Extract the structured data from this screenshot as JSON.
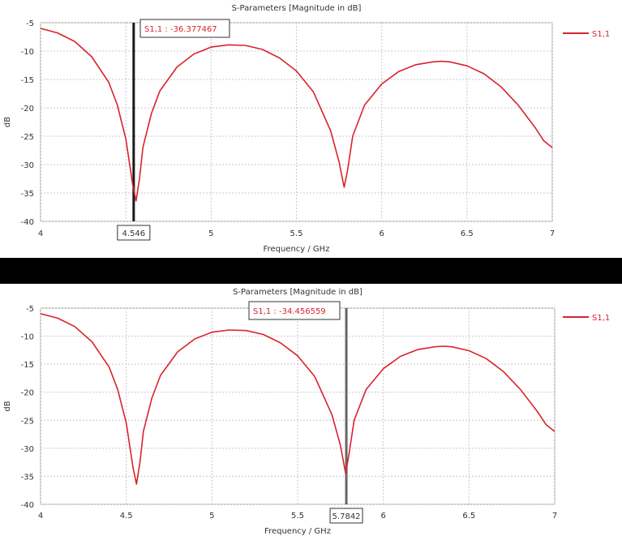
{
  "chart_data": [
    {
      "type": "line",
      "title": "S-Parameters [Magnitude in dB]",
      "xlabel": "Frequency / GHz",
      "ylabel": "dB",
      "xlim": [
        4,
        7
      ],
      "ylim": [
        -40,
        -5
      ],
      "xticks": [
        "4",
        "4.5",
        "5",
        "5.5",
        "6",
        "6.5",
        "7"
      ],
      "yticks": [
        "-5",
        "-10",
        "-15",
        "-20",
        "-25",
        "-30",
        "-35",
        "-40"
      ],
      "grid": true,
      "legend": "top-right",
      "series": [
        {
          "name": "S1,1",
          "color": "#d9232d",
          "x": [
            4.0,
            4.1,
            4.2,
            4.3,
            4.4,
            4.45,
            4.5,
            4.52,
            4.54,
            4.56,
            4.58,
            4.6,
            4.65,
            4.7,
            4.8,
            4.9,
            5.0,
            5.1,
            5.2,
            5.3,
            5.4,
            5.5,
            5.6,
            5.7,
            5.75,
            5.78,
            5.8,
            5.83,
            5.9,
            6.0,
            6.1,
            6.2,
            6.3,
            6.35,
            6.4,
            6.5,
            6.6,
            6.7,
            6.8,
            6.9,
            6.95,
            7.0
          ],
          "y": [
            -6,
            -6.8,
            -8.3,
            -11,
            -15.5,
            -19.5,
            -25.5,
            -29.5,
            -33.5,
            -36.4,
            -32.5,
            -27,
            -21,
            -17,
            -12.8,
            -10.5,
            -9.3,
            -8.9,
            -9,
            -9.7,
            -11.2,
            -13.5,
            -17.2,
            -24,
            -29.5,
            -34,
            -31,
            -25,
            -19.5,
            -15.8,
            -13.6,
            -12.4,
            -11.9,
            -11.8,
            -11.9,
            -12.6,
            -14,
            -16.3,
            -19.5,
            -23.5,
            -25.8,
            -27
          ]
        }
      ],
      "marker": {
        "x": 4.546,
        "x_label": "4.546",
        "label": "S1,1 : -36.377467"
      }
    },
    {
      "type": "line",
      "title": "S-Parameters [Magnitude in dB]",
      "xlabel": "Frequency / GHz",
      "ylabel": "dB",
      "xlim": [
        4,
        7
      ],
      "ylim": [
        -40,
        -5
      ],
      "xticks": [
        "4",
        "4.5",
        "5",
        "5.5",
        "6",
        "6.5",
        "7"
      ],
      "yticks": [
        "-5",
        "-10",
        "-15",
        "-20",
        "-25",
        "-30",
        "-35",
        "-40"
      ],
      "grid": true,
      "legend": "top-right",
      "series": [
        {
          "name": "S1,1",
          "color": "#d9232d",
          "x": [
            4.0,
            4.1,
            4.2,
            4.3,
            4.4,
            4.45,
            4.5,
            4.52,
            4.54,
            4.56,
            4.58,
            4.6,
            4.65,
            4.7,
            4.8,
            4.9,
            5.0,
            5.1,
            5.2,
            5.3,
            5.4,
            5.5,
            5.6,
            5.7,
            5.75,
            5.78,
            5.8,
            5.83,
            5.9,
            6.0,
            6.1,
            6.2,
            6.3,
            6.35,
            6.4,
            6.5,
            6.6,
            6.7,
            6.8,
            6.9,
            6.95,
            7.0
          ],
          "y": [
            -6,
            -6.8,
            -8.3,
            -11,
            -15.5,
            -19.5,
            -25.5,
            -29.5,
            -33.5,
            -36.4,
            -32.5,
            -27,
            -21,
            -17,
            -12.8,
            -10.5,
            -9.3,
            -8.9,
            -9,
            -9.7,
            -11.2,
            -13.5,
            -17.2,
            -24,
            -29.5,
            -34.5,
            -31,
            -25,
            -19.5,
            -15.8,
            -13.6,
            -12.4,
            -11.9,
            -11.8,
            -11.9,
            -12.6,
            -14,
            -16.3,
            -19.5,
            -23.5,
            -25.8,
            -27
          ]
        }
      ],
      "marker": {
        "x": 5.7842,
        "x_label": "5.7842",
        "label": "S1,1 : -34.456559"
      }
    }
  ]
}
